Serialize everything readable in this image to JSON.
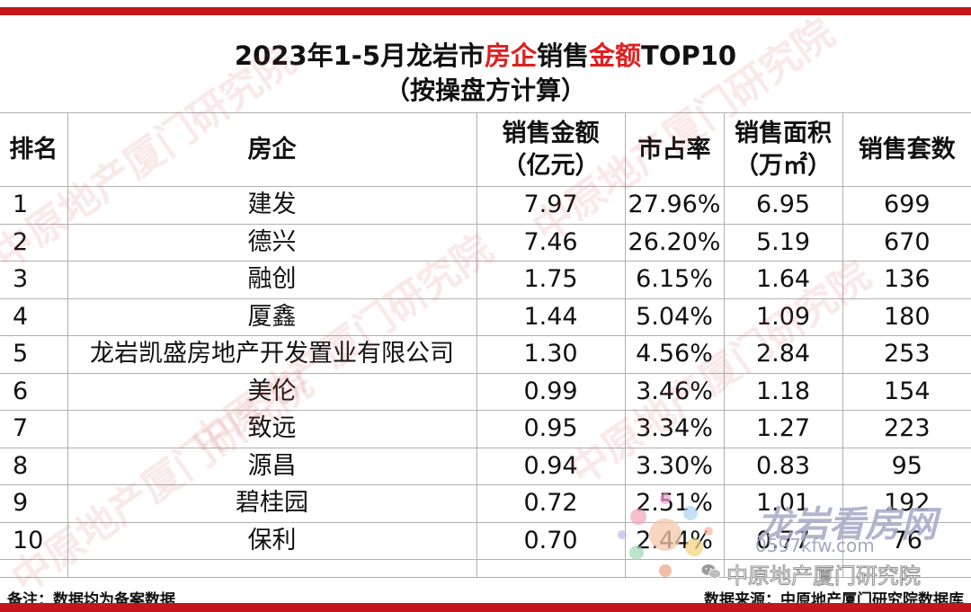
{
  "title": {
    "line1_a": "2023年1-5月龙岩市",
    "line1_highlight1": "房企",
    "line1_b": "销售",
    "line1_highlight2": "金额",
    "line1_c": "TOP10",
    "line2": "（按操盘方计算）"
  },
  "colors": {
    "accent_red": "#c4161c",
    "highlight_red": "#e02020"
  },
  "table": {
    "headers": {
      "rank": "排名",
      "company": "房企",
      "amount_line1": "销售金额",
      "amount_line2": "（亿元）",
      "share": "市占率",
      "area_line1": "销售面积",
      "area_line2": "（万㎡）",
      "units": "销售套数"
    },
    "rows": [
      {
        "rank": "1",
        "company": "建发",
        "amount": "7.97",
        "share": "27.96%",
        "area": "6.95",
        "units": "699"
      },
      {
        "rank": "2",
        "company": "德兴",
        "amount": "7.46",
        "share": "26.20%",
        "area": "5.19",
        "units": "670"
      },
      {
        "rank": "3",
        "company": "融创",
        "amount": "1.75",
        "share": "6.15%",
        "area": "1.64",
        "units": "136"
      },
      {
        "rank": "4",
        "company": "厦鑫",
        "amount": "1.44",
        "share": "5.04%",
        "area": "1.09",
        "units": "180"
      },
      {
        "rank": "5",
        "company": "龙岩凯盛房地产开发置业有限公司",
        "amount": "1.30",
        "share": "4.56%",
        "area": "2.84",
        "units": "253"
      },
      {
        "rank": "6",
        "company": "美伦",
        "amount": "0.99",
        "share": "3.46%",
        "area": "1.18",
        "units": "154"
      },
      {
        "rank": "7",
        "company": "致远",
        "amount": "0.95",
        "share": "3.34%",
        "area": "1.27",
        "units": "223"
      },
      {
        "rank": "8",
        "company": "源昌",
        "amount": "0.94",
        "share": "3.30%",
        "area": "0.83",
        "units": "95"
      },
      {
        "rank": "9",
        "company": "碧桂园",
        "amount": "0.72",
        "share": "2.51%",
        "area": "1.01",
        "units": "192"
      },
      {
        "rank": "10",
        "company": "保利",
        "amount": "0.70",
        "share": "2.44%",
        "area": "0.77",
        "units": "76"
      }
    ]
  },
  "footer": {
    "note": "备注：数据均为备案数据",
    "source": "数据来源：中原地产厦门研究院数据库"
  },
  "watermark": {
    "text": "中原地产厦门研究院",
    "logo_title": "龙岩看房网",
    "logo_url": "0597kfw.com",
    "logo_org": "中原地产厦门研究院",
    "logo_icon": "wechat-icon"
  }
}
